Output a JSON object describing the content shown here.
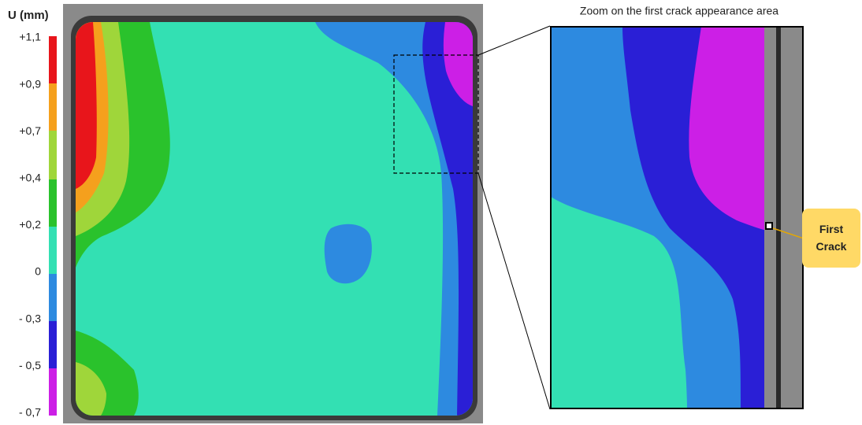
{
  "legend": {
    "title": "U (mm)",
    "labels": [
      "+1,1",
      "+0,9",
      "+0,7",
      "+0,4",
      "+0,2",
      "0",
      "- 0,3",
      "- 0,5",
      "- 0,7"
    ]
  },
  "zoom": {
    "caption": "Zoom on the first crack appearance area"
  },
  "callout": {
    "label": "First Crack"
  }
}
